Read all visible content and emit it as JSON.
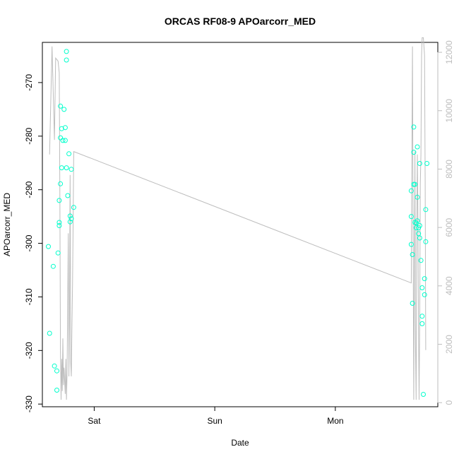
{
  "chart_data": {
    "type": "scatter",
    "title": "ORCAS RF08-9 APOarcorr_MED",
    "xlabel": "Date",
    "ylabel": "APOarcorr_MED",
    "x_ticks": [
      {
        "label": "Sat",
        "day": 1.0
      },
      {
        "label": "Sun",
        "day": 2.0
      },
      {
        "label": "Mon",
        "day": 3.0
      }
    ],
    "x_range_days": [
      0.57,
      3.85
    ],
    "y_range": [
      -330.5,
      -262.5
    ],
    "y_ticks": [
      -330,
      -320,
      -310,
      -300,
      -290,
      -280,
      -270
    ],
    "y2_range": [
      -140,
      12340
    ],
    "y2_ticks": [
      0,
      2000,
      4000,
      6000,
      8000,
      10000,
      12000
    ],
    "grid": false,
    "series": [
      {
        "kind": "points",
        "color": "#00ffcc",
        "points": [
          {
            "day": 0.62,
            "y": -300.6
          },
          {
            "day": 0.63,
            "y": -316.8
          },
          {
            "day": 0.66,
            "y": -304.3
          },
          {
            "day": 0.67,
            "y": -322.9
          },
          {
            "day": 0.69,
            "y": -323.8
          },
          {
            "day": 0.69,
            "y": -327.4
          },
          {
            "day": 0.7,
            "y": -301.8
          },
          {
            "day": 0.71,
            "y": -292.0
          },
          {
            "day": 0.71,
            "y": -296.7
          },
          {
            "day": 0.71,
            "y": -296.1
          },
          {
            "day": 0.72,
            "y": -288.9
          },
          {
            "day": 0.72,
            "y": -280.3
          },
          {
            "day": 0.72,
            "y": -274.4
          },
          {
            "day": 0.73,
            "y": -278.6
          },
          {
            "day": 0.73,
            "y": -285.9
          },
          {
            "day": 0.74,
            "y": -280.8
          },
          {
            "day": 0.75,
            "y": -275.0
          },
          {
            "day": 0.76,
            "y": -280.8
          },
          {
            "day": 0.76,
            "y": -278.4
          },
          {
            "day": 0.77,
            "y": -265.8
          },
          {
            "day": 0.77,
            "y": -264.2
          },
          {
            "day": 0.77,
            "y": -285.9
          },
          {
            "day": 0.78,
            "y": -291.1
          },
          {
            "day": 0.79,
            "y": -283.3
          },
          {
            "day": 0.8,
            "y": -296.0
          },
          {
            "day": 0.8,
            "y": -294.9
          },
          {
            "day": 0.81,
            "y": -286.2
          },
          {
            "day": 0.81,
            "y": -295.4
          },
          {
            "day": 0.83,
            "y": -293.3
          },
          {
            "day": 3.63,
            "y": -290.2
          },
          {
            "day": 3.63,
            "y": -295.0
          },
          {
            "day": 3.63,
            "y": -300.2
          },
          {
            "day": 3.64,
            "y": -311.2
          },
          {
            "day": 3.64,
            "y": -302.1
          },
          {
            "day": 3.65,
            "y": -278.3
          },
          {
            "day": 3.65,
            "y": -283.0
          },
          {
            "day": 3.65,
            "y": -289.0
          },
          {
            "day": 3.66,
            "y": -289.0
          },
          {
            "day": 3.66,
            "y": -296.1
          },
          {
            "day": 3.67,
            "y": -296.2
          },
          {
            "day": 3.67,
            "y": -297.1
          },
          {
            "day": 3.68,
            "y": -291.4
          },
          {
            "day": 3.68,
            "y": -282.0
          },
          {
            "day": 3.68,
            "y": -295.8
          },
          {
            "day": 3.69,
            "y": -297.1
          },
          {
            "day": 3.69,
            "y": -298.2
          },
          {
            "day": 3.7,
            "y": -296.7
          },
          {
            "day": 3.7,
            "y": -299.0
          },
          {
            "day": 3.7,
            "y": -285.1
          },
          {
            "day": 3.71,
            "y": -303.2
          },
          {
            "day": 3.72,
            "y": -308.3
          },
          {
            "day": 3.72,
            "y": -313.6
          },
          {
            "day": 3.72,
            "y": -315.0
          },
          {
            "day": 3.73,
            "y": -328.2
          },
          {
            "day": 3.74,
            "y": -309.6
          },
          {
            "day": 3.74,
            "y": -306.6
          },
          {
            "day": 3.75,
            "y": -293.7
          },
          {
            "day": 3.75,
            "y": -299.7
          },
          {
            "day": 3.76,
            "y": -285.1
          }
        ]
      },
      {
        "kind": "line",
        "axis": "right",
        "color": "#bdbdbd",
        "points": [
          {
            "day": 0.63,
            "y2": 8500
          },
          {
            "day": 0.65,
            "y2": 12200
          },
          {
            "day": 0.67,
            "y2": 9000
          },
          {
            "day": 0.68,
            "y2": 11800
          },
          {
            "day": 0.7,
            "y2": 11700
          },
          {
            "day": 0.71,
            "y2": 11300
          },
          {
            "day": 0.715,
            "y2": 7000
          },
          {
            "day": 0.72,
            "y2": 1800
          },
          {
            "day": 0.725,
            "y2": 100
          },
          {
            "day": 0.73,
            "y2": 1500
          },
          {
            "day": 0.735,
            "y2": 400
          },
          {
            "day": 0.74,
            "y2": 2200
          },
          {
            "day": 0.745,
            "y2": 600
          },
          {
            "day": 0.75,
            "y2": 1200
          },
          {
            "day": 0.76,
            "y2": 300
          },
          {
            "day": 0.765,
            "y2": 1500
          },
          {
            "day": 0.77,
            "y2": 100
          },
          {
            "day": 0.775,
            "y2": 1000
          },
          {
            "day": 0.78,
            "y2": 3500
          },
          {
            "day": 0.785,
            "y2": 5800
          },
          {
            "day": 0.79,
            "y2": 900
          },
          {
            "day": 0.795,
            "y2": 3000
          },
          {
            "day": 0.8,
            "y2": 7800
          },
          {
            "day": 0.805,
            "y2": 1400
          },
          {
            "day": 0.81,
            "y2": 900
          },
          {
            "day": 0.815,
            "y2": 2500
          },
          {
            "day": 0.82,
            "y2": 4000
          },
          {
            "day": 0.825,
            "y2": 6000
          },
          {
            "day": 0.83,
            "y2": 8600
          },
          {
            "day": 3.63,
            "y2": 4100
          },
          {
            "day": 3.635,
            "y2": 8500
          },
          {
            "day": 3.64,
            "y2": 12200
          },
          {
            "day": 3.645,
            "y2": 6000
          },
          {
            "day": 3.65,
            "y2": 100
          },
          {
            "day": 3.655,
            "y2": 4000
          },
          {
            "day": 3.66,
            "y2": 8600
          },
          {
            "day": 3.665,
            "y2": 2000
          },
          {
            "day": 3.67,
            "y2": 100
          },
          {
            "day": 3.675,
            "y2": 5000
          },
          {
            "day": 3.68,
            "y2": 8500
          },
          {
            "day": 3.685,
            "y2": 6500
          },
          {
            "day": 3.69,
            "y2": 2500
          },
          {
            "day": 3.695,
            "y2": 100
          },
          {
            "day": 3.7,
            "y2": 3000
          },
          {
            "day": 3.705,
            "y2": 7500
          },
          {
            "day": 3.71,
            "y2": 8500
          },
          {
            "day": 3.715,
            "y2": 11900
          },
          {
            "day": 3.72,
            "y2": 12500
          },
          {
            "day": 3.73,
            "y2": 12500
          },
          {
            "day": 3.74,
            "y2": 11900
          },
          {
            "day": 3.745,
            "y2": 7500
          },
          {
            "day": 3.75,
            "y2": 1800
          }
        ]
      }
    ]
  }
}
